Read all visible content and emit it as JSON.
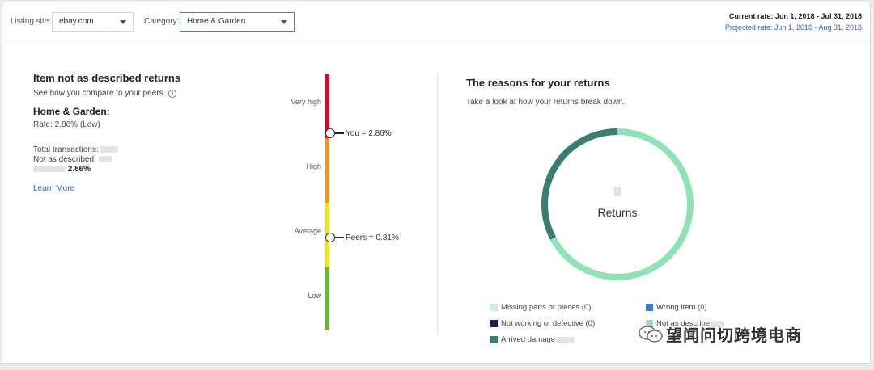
{
  "filters": {
    "listing_site_label": "Listing site:",
    "listing_site_value": "ebay.com",
    "category_label": "Category:",
    "category_value": "Home & Garden"
  },
  "rates": {
    "current": "Current rate: Jun 1, 2018 - Jul 31, 2018",
    "projected": "Projected rate: Jun 1, 2018 - Aug 31, 2018"
  },
  "summary": {
    "title": "Item not as described returns",
    "subtitle": "See how you compare to your peers.",
    "category_heading": "Home & Garden:",
    "rate_text": "Rate: 2.86% (Low)",
    "total_transactions_label": "Total transactions:",
    "not_as_described_label": "Not as described:",
    "not_as_described_pct": "2.86%",
    "learn_more": "Learn More"
  },
  "scale": {
    "levels": [
      "Very high",
      "High",
      "Average",
      "Low"
    ],
    "colors": [
      "#c8102e",
      "#e8952e",
      "#f0e030",
      "#6db33f"
    ],
    "you_label": "You = 2.86%",
    "peers_label": "Peers = 0.81%"
  },
  "reasons": {
    "title": "The reasons for your returns",
    "subtitle": "Take a look at how your returns break down.",
    "center_label": "Returns",
    "legend": [
      {
        "label": "Missing parts or pieces (0)",
        "color": "#cde8ee"
      },
      {
        "label": "Wrong item (0)",
        "color": "#3a78d4"
      },
      {
        "label": "Not working or defective (0)",
        "color": "#14214d"
      },
      {
        "label": "Not as describe",
        "color": "#a8d8c0"
      },
      {
        "label": "Arrived damage",
        "color": "#3a7d72"
      }
    ]
  },
  "watermark": {
    "text": "望闻问切跨境电商"
  }
}
